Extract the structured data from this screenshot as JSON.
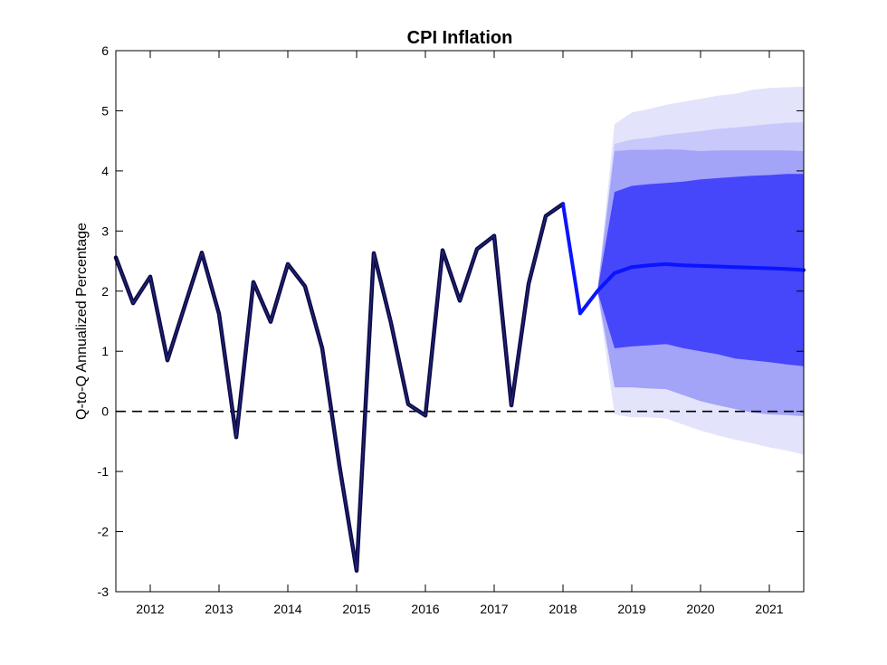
{
  "chart_data": {
    "type": "line",
    "title": "CPI Inflation",
    "xlabel": "",
    "ylabel": "Q-to-Q Annualized Percentage",
    "xlim": [
      2011.5,
      2021.5
    ],
    "ylim": [
      -3,
      6
    ],
    "x_ticks": [
      2012,
      2013,
      2014,
      2015,
      2016,
      2017,
      2018,
      2019,
      2020,
      2021
    ],
    "y_ticks": [
      -3,
      -2,
      -1,
      0,
      1,
      2,
      3,
      4,
      5,
      6
    ],
    "grid": false,
    "reference_line": {
      "y": 0,
      "style": "dashed"
    },
    "series": [
      {
        "role": "history",
        "x": [
          2011.5,
          2011.75,
          2012.0,
          2012.25,
          2012.5,
          2012.75,
          2013.0,
          2013.25,
          2013.5,
          2013.75,
          2014.0,
          2014.25,
          2014.5,
          2014.75,
          2015.0,
          2015.25,
          2015.5,
          2015.75,
          2016.0,
          2016.25,
          2016.5,
          2016.75,
          2017.0,
          2017.25,
          2017.5,
          2017.75,
          2018.0
        ],
        "y": [
          2.56,
          1.8,
          2.24,
          0.85,
          1.75,
          2.64,
          1.62,
          -0.43,
          2.15,
          1.49,
          2.45,
          2.08,
          1.05,
          -0.9,
          -2.65,
          2.63,
          1.47,
          0.12,
          -0.07,
          2.68,
          1.84,
          2.7,
          2.92,
          0.1,
          2.12,
          3.25,
          3.45
        ]
      },
      {
        "role": "projection-median",
        "x": [
          2018.0,
          2018.25,
          2018.5,
          2018.75,
          2019.0,
          2019.25,
          2019.5,
          2019.75,
          2020.0,
          2020.25,
          2020.5,
          2020.75,
          2021.0,
          2021.25,
          2021.5
        ],
        "y": [
          3.45,
          1.63,
          2.0,
          2.3,
          2.4,
          2.43,
          2.45,
          2.43,
          2.42,
          2.41,
          2.4,
          2.39,
          2.38,
          2.37,
          2.35
        ]
      }
    ],
    "fan_bands": {
      "x": [
        2018.5,
        2018.75,
        2019.0,
        2019.25,
        2019.5,
        2019.75,
        2020.0,
        2020.25,
        2020.5,
        2020.75,
        2021.0,
        2021.25,
        2021.5
      ],
      "bands": [
        {
          "level": "outer",
          "upper": [
            2.0,
            4.78,
            4.97,
            5.03,
            5.1,
            5.15,
            5.2,
            5.25,
            5.28,
            5.35,
            5.38,
            5.39,
            5.4
          ],
          "lower": [
            2.0,
            -0.05,
            -0.1,
            -0.1,
            -0.12,
            -0.22,
            -0.32,
            -0.4,
            -0.47,
            -0.53,
            -0.6,
            -0.65,
            -0.72
          ]
        },
        {
          "level": "second",
          "upper": [
            2.0,
            4.45,
            4.52,
            4.55,
            4.6,
            4.63,
            4.66,
            4.7,
            4.72,
            4.75,
            4.78,
            4.8,
            4.81
          ]
        },
        {
          "level": "third",
          "upper": [
            2.0,
            4.33,
            4.35,
            4.35,
            4.36,
            4.35,
            4.33,
            4.34,
            4.34,
            4.34,
            4.34,
            4.34,
            4.33
          ],
          "lower": [
            2.0,
            0.4,
            0.4,
            0.38,
            0.37,
            0.27,
            0.17,
            0.1,
            0.04,
            -0.02,
            -0.05,
            -0.06,
            -0.08
          ]
        },
        {
          "level": "inner",
          "upper": [
            2.0,
            3.65,
            3.75,
            3.78,
            3.8,
            3.82,
            3.86,
            3.88,
            3.9,
            3.92,
            3.93,
            3.95,
            3.95
          ],
          "lower": [
            2.0,
            1.05,
            1.08,
            1.1,
            1.12,
            1.05,
            1.0,
            0.95,
            0.88,
            0.85,
            0.82,
            0.78,
            0.75
          ]
        }
      ],
      "second_lower": [
        2.0,
        0.73,
        0.73,
        0.72,
        0.72,
        0.65,
        0.58,
        0.5,
        0.45,
        0.42,
        0.4,
        0.38,
        0.36
      ]
    },
    "colors": {
      "history": "#0b0b45",
      "median": "#0a14ff",
      "band_outer": "#e3e3fb",
      "band_second": "#c8c8fb",
      "band_third": "#a3a3f8",
      "band_inner": "#4646fb"
    }
  }
}
